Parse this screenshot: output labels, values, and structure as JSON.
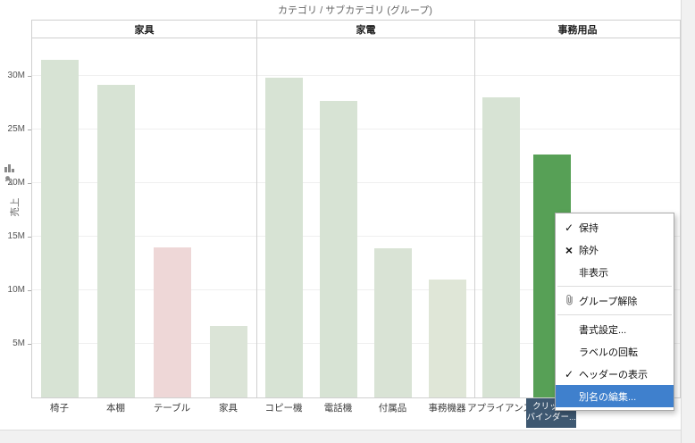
{
  "header": {
    "field_label": "カテゴリ  /  サブカテゴリ (グループ)"
  },
  "y_axis": {
    "title": "売上",
    "ticks": [
      {
        "label": "5M",
        "value": 5
      },
      {
        "label": "10M",
        "value": 10
      },
      {
        "label": "15M",
        "value": 15
      },
      {
        "label": "20M",
        "value": 20
      },
      {
        "label": "25M",
        "value": 25
      },
      {
        "label": "30M",
        "value": 30
      }
    ]
  },
  "chart_data": {
    "type": "bar",
    "title": "カテゴリ / サブカテゴリ (グループ)",
    "xlabel": "",
    "ylabel": "売上",
    "unit": "M",
    "ylim": [
      0,
      33.5
    ],
    "grid": "faint-horizontal",
    "legend": "none",
    "groups": [
      {
        "category": "家具",
        "subcategories": [
          "椅子",
          "本棚",
          "テーブル",
          "家具"
        ],
        "values": [
          31.5,
          29.2,
          14.0,
          6.7
        ],
        "colors": [
          "#d7e3d4",
          "#d7e3d4",
          "#eed7d7",
          "#dbe4d7"
        ]
      },
      {
        "category": "家電",
        "subcategories": [
          "コピー機",
          "電話機",
          "付属品",
          "事務機器"
        ],
        "values": [
          29.8,
          27.7,
          13.9,
          11.0
        ],
        "colors": [
          "#d7e3d4",
          "#d7e3d4",
          "#d9e3d5",
          "#dfe6d7"
        ]
      },
      {
        "category": "事務用品",
        "subcategories": [
          "アプライアンス",
          "クリップ/バインダー"
        ],
        "values": [
          28.0,
          22.7
        ],
        "colors": [
          "#d7e3d4",
          "#57a056"
        ]
      }
    ],
    "highlighted_bar": "クリップ/バインダー"
  },
  "selected_header": {
    "line1": "クリップ/",
    "line2": "バインダー...",
    "bg": "#3e5871",
    "text_color": "#ffffff"
  },
  "context_menu": {
    "highlight_color": "#3f80cd",
    "items": [
      {
        "icon": "check",
        "label": "保持"
      },
      {
        "icon": "x",
        "label": "除外"
      },
      {
        "icon": "",
        "label": "非表示"
      },
      {
        "separator": true
      },
      {
        "icon": "paperclip",
        "label": "グループ解除"
      },
      {
        "separator": true
      },
      {
        "icon": "",
        "label": "書式設定..."
      },
      {
        "icon": "",
        "label": "ラベルの回転"
      },
      {
        "icon": "check",
        "label": "ヘッダーの表示"
      },
      {
        "icon": "",
        "label": "別名の編集...",
        "highlighted": true
      }
    ]
  },
  "icons": {
    "axis_sort": "sort-bars-icon",
    "axis_pin": "pin-icon",
    "menu_check": "✓",
    "menu_x": "×",
    "menu_paperclip": "paperclip-icon"
  },
  "colors": {
    "bar_default": "#d7e3d4",
    "bar_negative": "#eed7d7",
    "bar_selected": "#57a056",
    "menu_highlight": "#3f80cd",
    "selected_header_bg": "#3e5871",
    "border": "#d0d0d0"
  }
}
